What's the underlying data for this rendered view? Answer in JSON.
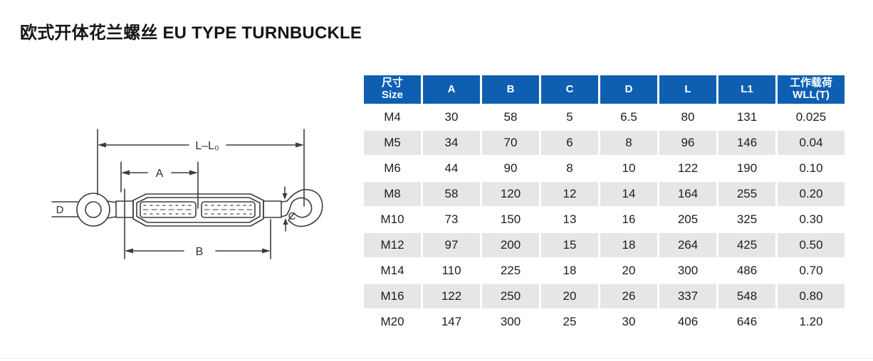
{
  "title": "欧式开体花兰螺丝 EU TYPE TURNBUCKLE",
  "diagram": {
    "dim_overall": "L–L₀",
    "dim_a": "A",
    "dim_b": "B",
    "dim_c": "C",
    "dim_d": "D"
  },
  "table": {
    "header": {
      "size_zh": "尺寸",
      "size_en": "Size",
      "a": "A",
      "b": "B",
      "c": "C",
      "d": "D",
      "l": "L",
      "l1": "L1",
      "wll_zh": "工作载荷",
      "wll_en": "WLL(T)"
    },
    "rows": [
      {
        "size": "M4",
        "a": "30",
        "b": "58",
        "c": "5",
        "d": "6.5",
        "l": "80",
        "l1": "131",
        "wll": "0.025"
      },
      {
        "size": "M5",
        "a": "34",
        "b": "70",
        "c": "6",
        "d": "8",
        "l": "96",
        "l1": "146",
        "wll": "0.04"
      },
      {
        "size": "M6",
        "a": "44",
        "b": "90",
        "c": "8",
        "d": "10",
        "l": "122",
        "l1": "190",
        "wll": "0.10"
      },
      {
        "size": "M8",
        "a": "58",
        "b": "120",
        "c": "12",
        "d": "14",
        "l": "164",
        "l1": "255",
        "wll": "0.20"
      },
      {
        "size": "M10",
        "a": "73",
        "b": "150",
        "c": "13",
        "d": "16",
        "l": "205",
        "l1": "325",
        "wll": "0.30"
      },
      {
        "size": "M12",
        "a": "97",
        "b": "200",
        "c": "15",
        "d": "18",
        "l": "264",
        "l1": "425",
        "wll": "0.50"
      },
      {
        "size": "M14",
        "a": "110",
        "b": "225",
        "c": "18",
        "d": "20",
        "l": "300",
        "l1": "486",
        "wll": "0.70"
      },
      {
        "size": "M16",
        "a": "122",
        "b": "250",
        "c": "20",
        "d": "26",
        "l": "337",
        "l1": "548",
        "wll": "0.80"
      },
      {
        "size": "M20",
        "a": "147",
        "b": "300",
        "c": "25",
        "d": "30",
        "l": "406",
        "l1": "646",
        "wll": "1.20"
      }
    ]
  },
  "colors": {
    "header_bg": "#0e5fb2",
    "row_alt_bg": "#e6e6e6",
    "ink": "#1d1d1d",
    "line": "#3d3d3d"
  }
}
